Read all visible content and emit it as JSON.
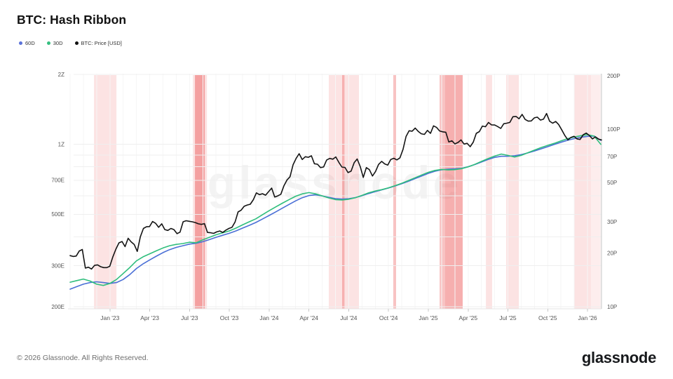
{
  "header": {
    "title": "BTC: Hash Ribbon"
  },
  "legend": {
    "items": [
      {
        "label": "60D",
        "color": "#5b72d9"
      },
      {
        "label": "30D",
        "color": "#35bf80"
      },
      {
        "label": "BTC: Price [USD]",
        "color": "#111111"
      }
    ]
  },
  "watermark": "glassnode",
  "footer": {
    "copyright": "© 2026 Glassnode. All Rights Reserved.",
    "brand": "glassnode"
  },
  "chart_data": {
    "type": "line",
    "title": "BTC: Hash Ribbon",
    "grid": "on",
    "legend_position": "top-left",
    "x_axis": {
      "unit": "months since Oct 2022",
      "domain": [
        0,
        40.06
      ],
      "minor_gridline_every_months": 1,
      "ticks": [
        {
          "m": 3,
          "label": "Jan '23"
        },
        {
          "m": 6,
          "label": "Apr '23"
        },
        {
          "m": 9,
          "label": "Jul '23"
        },
        {
          "m": 12,
          "label": "Oct '23"
        },
        {
          "m": 15,
          "label": "Jan '24"
        },
        {
          "m": 18,
          "label": "Apr '24"
        },
        {
          "m": 21,
          "label": "Jul '24"
        },
        {
          "m": 24,
          "label": "Oct '24"
        },
        {
          "m": 27,
          "label": "Jan '25"
        },
        {
          "m": 30,
          "label": "Apr '25"
        },
        {
          "m": 33,
          "label": "Jul '25"
        },
        {
          "m": 36,
          "label": "Oct '25"
        },
        {
          "m": 39,
          "label": "Jan '26"
        }
      ]
    },
    "left_axis": {
      "name": "hash-rate",
      "scale": "log",
      "domain": [
        200,
        2000
      ],
      "ticks": [
        {
          "v": 200,
          "label": "200E"
        },
        {
          "v": 300,
          "label": "300E"
        },
        {
          "v": 400,
          "label": ""
        },
        {
          "v": 500,
          "label": "500E"
        },
        {
          "v": 600,
          "label": ""
        },
        {
          "v": 700,
          "label": "700E"
        },
        {
          "v": 800,
          "label": ""
        },
        {
          "v": 900,
          "label": ""
        },
        {
          "v": 1000,
          "label": "1Z"
        },
        {
          "v": 2000,
          "label": "2Z"
        }
      ]
    },
    "right_axis": {
      "name": "btc-price",
      "scale": "log",
      "domain": [
        10,
        200
      ],
      "ticks": [
        {
          "v": 10,
          "label": "10P"
        },
        {
          "v": 20,
          "label": "20P"
        },
        {
          "v": 30,
          "label": "30P"
        },
        {
          "v": 50,
          "label": "50P"
        },
        {
          "v": 70,
          "label": "70P"
        },
        {
          "v": 100,
          "label": "100P"
        },
        {
          "v": 200,
          "label": "200P"
        }
      ]
    },
    "band_colors": {
      "light": "rgba(235,80,80,0.16)",
      "medium": "rgba(235,80,80,0.34)",
      "dark": "rgba(235,80,80,0.46)",
      "faint": "rgba(235,80,80,0.10)"
    },
    "signal_bands": [
      {
        "m1": 1.8,
        "m2": 3.49,
        "intensity": "light"
      },
      {
        "m1": 9.25,
        "m2": 10.31,
        "intensity": "light"
      },
      {
        "m1": 9.41,
        "m2": 10.15,
        "intensity": "dark"
      },
      {
        "m1": 19.5,
        "m2": 21.77,
        "intensity": "light"
      },
      {
        "m1": 20.5,
        "m2": 20.68,
        "intensity": "medium"
      },
      {
        "m1": 24.36,
        "m2": 24.57,
        "intensity": "medium"
      },
      {
        "m1": 27.85,
        "m2": 28.27,
        "intensity": "medium"
      },
      {
        "m1": 28.27,
        "m2": 29.59,
        "intensity": "dark"
      },
      {
        "m1": 31.34,
        "m2": 31.81,
        "intensity": "light"
      },
      {
        "m1": 32.87,
        "m2": 33.82,
        "intensity": "light"
      },
      {
        "m1": 38.0,
        "m2": 39.27,
        "intensity": "light"
      },
      {
        "m1": 39.27,
        "m2": 40.06,
        "intensity": "faint"
      }
    ],
    "series": [
      {
        "name": "60D",
        "axis": "left",
        "unit": "EH/s",
        "color": "#4a6fd6",
        "x_start": 0,
        "x_step": 0.5,
        "values": [
          238,
          244,
          250,
          254,
          256,
          254,
          252,
          254,
          262,
          275,
          292,
          306,
          318,
          330,
          342,
          352,
          360,
          366,
          372,
          375,
          381,
          389,
          398,
          406,
          414,
          424,
          436,
          448,
          461,
          477,
          494,
          512,
          531,
          551,
          571,
          589,
          602,
          606,
          600,
          591,
          584,
          581,
          583,
          590,
          601,
          614,
          626,
          637,
          649,
          662,
          677,
          694,
          712,
          731,
          750,
          766,
          777,
          782,
          784,
          788,
          801,
          818,
          839,
          860,
          879,
          888,
          889,
          893,
          903,
          918,
          936,
          956,
          977,
          999,
          1021,
          1041,
          1058,
          1072,
          1082,
          1086,
          1040
        ]
      },
      {
        "name": "30D",
        "axis": "left",
        "unit": "EH/s",
        "color": "#2fbe7d",
        "x_start": 0,
        "x_step": 0.5,
        "values": [
          255,
          259,
          263,
          258,
          250,
          247,
          252,
          262,
          278,
          295,
          315,
          328,
          338,
          348,
          358,
          366,
          371,
          374,
          379,
          377,
          388,
          398,
          408,
          416,
          424,
          436,
          450,
          464,
          478,
          498,
          518,
          538,
          558,
          578,
          598,
          612,
          620,
          612,
          600,
          588,
          578,
          576,
          580,
          589,
          603,
          618,
          630,
          638,
          650,
          664,
          680,
          698,
          718,
          738,
          758,
          772,
          780,
          776,
          778,
          786,
          800,
          820,
          844,
          868,
          890,
          908,
          896,
          882,
          896,
          920,
          944,
          968,
          990,
          1010,
          1035,
          1058,
          1076,
          1090,
          1100,
          1085,
          1000
        ]
      },
      {
        "name": "BTC: Price [USD]",
        "axis": "right",
        "unit": "thousand USD",
        "color": "#141414",
        "x_start": 0,
        "x_step": 0.2302,
        "values": [
          19.4,
          19.2,
          19.3,
          20.6,
          21.0,
          16.5,
          16.7,
          16.3,
          17.1,
          17.2,
          16.8,
          16.6,
          16.6,
          16.9,
          19.1,
          21.1,
          22.9,
          23.3,
          21.8,
          24.3,
          23.2,
          22.4,
          20.5,
          24.8,
          27.6,
          28.2,
          28.3,
          30.2,
          29.5,
          28.0,
          29.3,
          27.2,
          26.9,
          27.6,
          27.2,
          25.8,
          26.3,
          30.1,
          30.5,
          30.3,
          30.1,
          29.8,
          29.3,
          29.1,
          29.4,
          26.2,
          26.1,
          25.9,
          26.4,
          26.7,
          26.2,
          27.0,
          27.6,
          28.0,
          30.0,
          34.2,
          35.0,
          36.8,
          37.4,
          37.8,
          40.1,
          43.8,
          42.8,
          43.3,
          42.5,
          44.5,
          46.6,
          41.5,
          42.1,
          43.0,
          48.0,
          51.7,
          54.0,
          63.0,
          68.5,
          72.8,
          67.5,
          70.0,
          69.5,
          70.8,
          63.9,
          63.5,
          60.8,
          61.3,
          67.0,
          68.5,
          67.8,
          69.8,
          65.0,
          61.2,
          60.9,
          57.0,
          58.0,
          64.8,
          68.0,
          61.5,
          53.5,
          60.8,
          59.2,
          54.5,
          57.8,
          63.3,
          65.9,
          63.8,
          62.8,
          67.5,
          68.6,
          67.2,
          69.0,
          77.0,
          91.0,
          98.0,
          97.5,
          101.5,
          97.2,
          94.3,
          93.5,
          98.5,
          94.8,
          104.5,
          102.3,
          97.8,
          96.7,
          96.2,
          84.8,
          86.1,
          82.7,
          84.2,
          87.0,
          82.5,
          83.3,
          79.7,
          84.6,
          94.8,
          97.0,
          104.2,
          103.3,
          109.2,
          105.7,
          105.6,
          103.5,
          101.0,
          107.4,
          108.2,
          109.3,
          117.6,
          118.1,
          114.6,
          121.2,
          113.5,
          111.1,
          111.4,
          115.9,
          117.0,
          112.6,
          114.0,
          122.6,
          111.0,
          108.2,
          110.6,
          106.1,
          99.0,
          92.1,
          87.1,
          90.0,
          91.2,
          88.1,
          87.6,
          93.1,
          95.1,
          92.2,
          88.2,
          90.6,
          88.0,
          87.0
        ]
      }
    ]
  }
}
